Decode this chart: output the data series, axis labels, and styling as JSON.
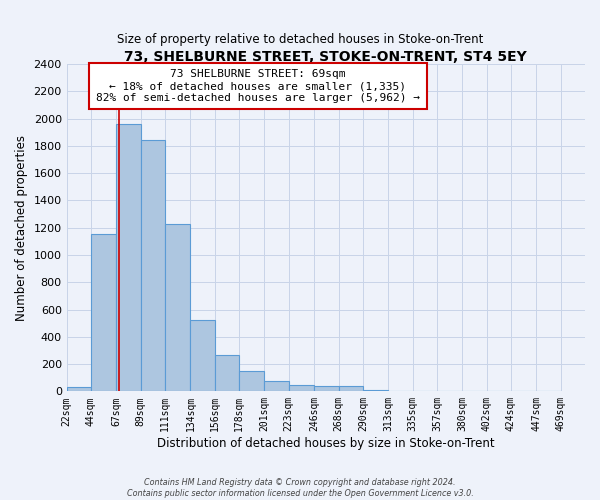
{
  "title": "73, SHELBURNE STREET, STOKE-ON-TRENT, ST4 5EY",
  "subtitle": "Size of property relative to detached houses in Stoke-on-Trent",
  "xlabel": "Distribution of detached houses by size in Stoke-on-Trent",
  "ylabel": "Number of detached properties",
  "bar_left_edges": [
    22,
    44,
    67,
    89,
    111,
    134,
    156,
    178,
    201,
    223,
    246,
    268,
    290,
    313,
    335,
    357,
    380,
    402,
    424,
    447
  ],
  "bar_heights": [
    30,
    1155,
    1960,
    1840,
    1225,
    520,
    265,
    148,
    78,
    50,
    38,
    38,
    10,
    5,
    2,
    2,
    1,
    1,
    0,
    0
  ],
  "bar_widths": [
    22,
    23,
    22,
    22,
    23,
    22,
    22,
    23,
    22,
    23,
    22,
    22,
    23,
    22,
    22,
    23,
    22,
    22,
    23,
    22
  ],
  "tick_labels": [
    "22sqm",
    "44sqm",
    "67sqm",
    "89sqm",
    "111sqm",
    "134sqm",
    "156sqm",
    "178sqm",
    "201sqm",
    "223sqm",
    "246sqm",
    "268sqm",
    "290sqm",
    "313sqm",
    "335sqm",
    "357sqm",
    "380sqm",
    "402sqm",
    "424sqm",
    "447sqm",
    "469sqm"
  ],
  "tick_positions": [
    22,
    44,
    67,
    89,
    111,
    134,
    156,
    178,
    201,
    223,
    246,
    268,
    290,
    313,
    335,
    357,
    380,
    402,
    424,
    447,
    469
  ],
  "bar_color": "#adc6e0",
  "bar_edge_color": "#5b9bd5",
  "vline_x": 69,
  "vline_color": "#cc0000",
  "annotation_line1": "73 SHELBURNE STREET: 69sqm",
  "annotation_line2": "← 18% of detached houses are smaller (1,335)",
  "annotation_line3": "82% of semi-detached houses are larger (5,962) →",
  "annotation_box_color": "#ffffff",
  "annotation_box_edge": "#cc0000",
  "ylim": [
    0,
    2400
  ],
  "yticks": [
    0,
    200,
    400,
    600,
    800,
    1000,
    1200,
    1400,
    1600,
    1800,
    2000,
    2200,
    2400
  ],
  "grid_color": "#c8d4e8",
  "footer_line1": "Contains HM Land Registry data © Crown copyright and database right 2024.",
  "footer_line2": "Contains public sector information licensed under the Open Government Licence v3.0.",
  "bg_color": "#eef2fa"
}
